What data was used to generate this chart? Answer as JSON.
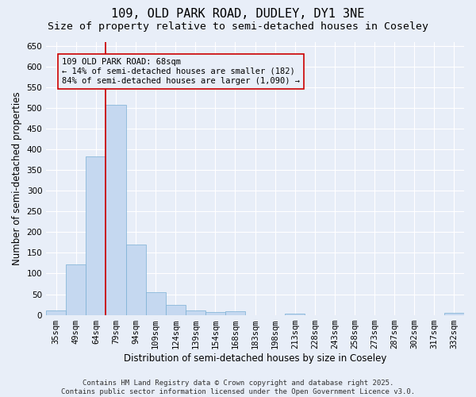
{
  "title_line1": "109, OLD PARK ROAD, DUDLEY, DY1 3NE",
  "title_line2": "Size of property relative to semi-detached houses in Coseley",
  "xlabel": "Distribution of semi-detached houses by size in Coseley",
  "ylabel": "Number of semi-detached properties",
  "categories": [
    "35sqm",
    "49sqm",
    "64sqm",
    "79sqm",
    "94sqm",
    "109sqm",
    "124sqm",
    "139sqm",
    "154sqm",
    "168sqm",
    "183sqm",
    "198sqm",
    "213sqm",
    "228sqm",
    "243sqm",
    "258sqm",
    "273sqm",
    "287sqm",
    "302sqm",
    "317sqm",
    "332sqm"
  ],
  "values": [
    10,
    122,
    383,
    507,
    170,
    55,
    25,
    10,
    6,
    8,
    0,
    0,
    3,
    0,
    0,
    0,
    0,
    0,
    0,
    0,
    4
  ],
  "bar_color": "#c5d8f0",
  "bar_edge_color": "#7aafd4",
  "background_color": "#e8eef8",
  "grid_color": "#ffffff",
  "vline_color": "#cc0000",
  "vline_index": 2.5,
  "annotation_text_line1": "109 OLD PARK ROAD: 68sqm",
  "annotation_text_line2": "← 14% of semi-detached houses are smaller (182)",
  "annotation_text_line3": "84% of semi-detached houses are larger (1,090) →",
  "ylim": [
    0,
    660
  ],
  "yticks": [
    0,
    50,
    100,
    150,
    200,
    250,
    300,
    350,
    400,
    450,
    500,
    550,
    600,
    650
  ],
  "footer_line1": "Contains HM Land Registry data © Crown copyright and database right 2025.",
  "footer_line2": "Contains public sector information licensed under the Open Government Licence v3.0.",
  "title_fontsize": 11,
  "subtitle_fontsize": 9.5,
  "axis_label_fontsize": 8.5,
  "tick_fontsize": 7.5,
  "annotation_fontsize": 7.5,
  "footer_fontsize": 6.5
}
